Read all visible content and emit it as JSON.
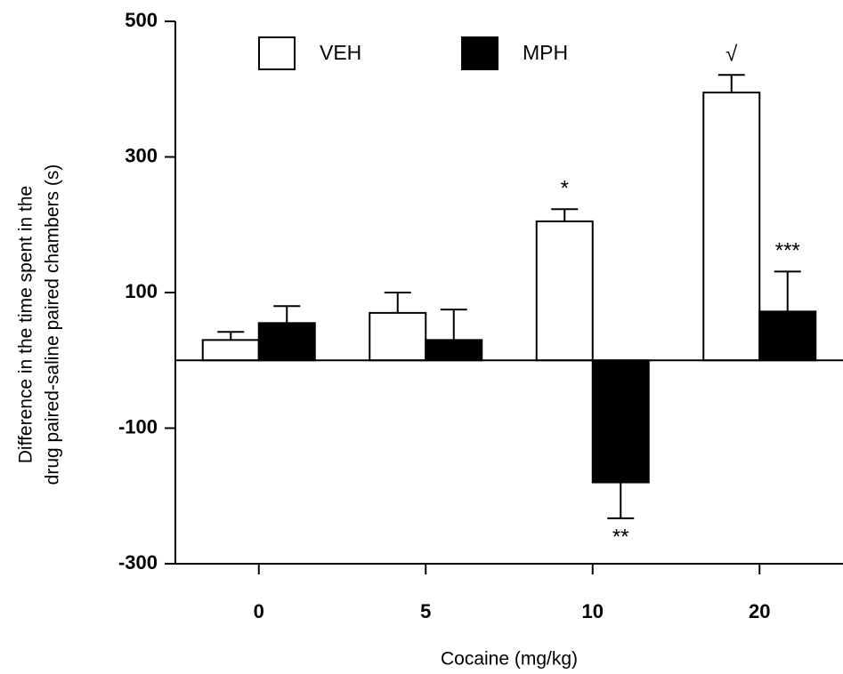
{
  "chart_data": {
    "type": "bar",
    "y_label_lines": [
      "Difference in the time spent in the",
      "drug paired-saline paired chambers (s)"
    ],
    "x_label": "Cocaine (mg/kg)",
    "categories": [
      "0",
      "5",
      "10",
      "20"
    ],
    "series": [
      {
        "name": "VEH",
        "color": "#ffffff",
        "values": [
          30,
          70,
          205,
          395
        ],
        "errors": [
          12,
          30,
          18,
          26
        ]
      },
      {
        "name": "MPH",
        "color": "#000000",
        "values": [
          55,
          30,
          -180,
          72
        ],
        "errors": [
          25,
          45,
          53,
          59
        ]
      }
    ],
    "annotations": [
      {
        "text": "*",
        "series": "VEH",
        "category": "10"
      },
      {
        "text": "**",
        "series": "MPH",
        "category": "10"
      },
      {
        "text": "√",
        "series": "VEH",
        "category": "20"
      },
      {
        "text": "***",
        "series": "MPH",
        "category": "20"
      }
    ],
    "ylim": [
      -300,
      500
    ],
    "yticks": [
      -300,
      -100,
      100,
      300,
      500
    ],
    "legend": "top"
  }
}
